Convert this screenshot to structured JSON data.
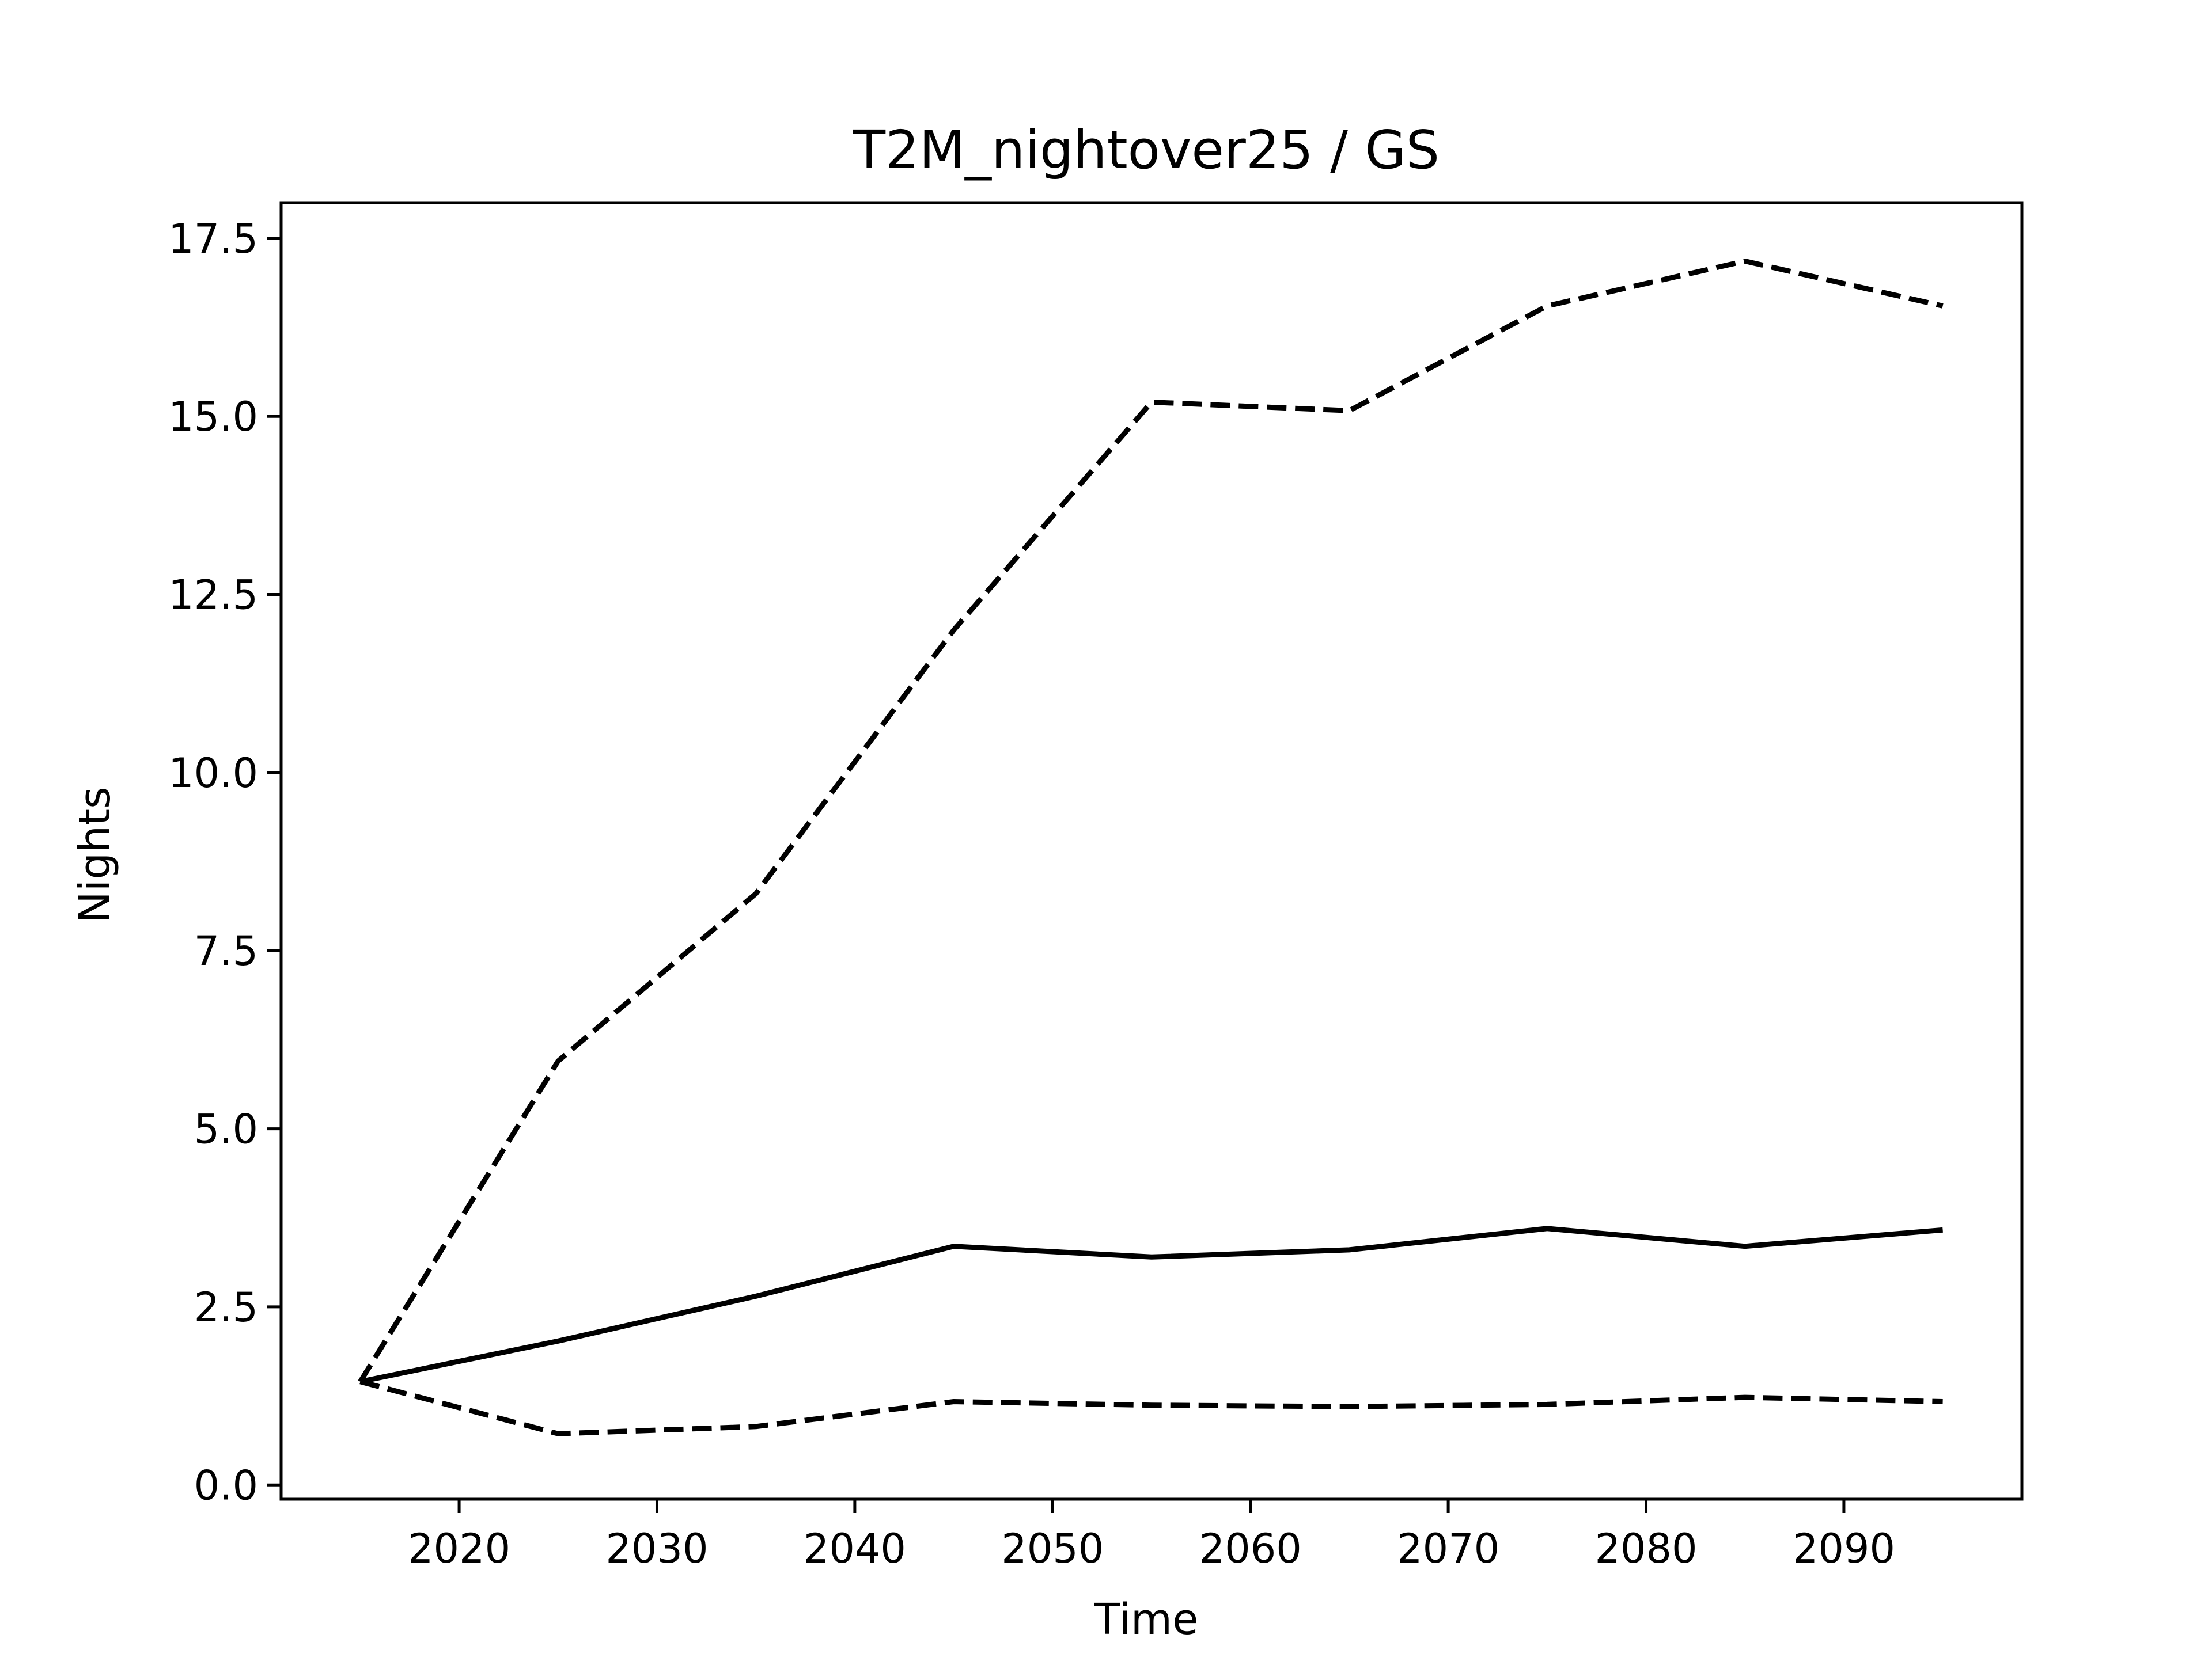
{
  "chart_data": {
    "type": "line",
    "title": "T2M_nightover25 / GS",
    "xlabel": "Time",
    "ylabel": "Nights",
    "xlim": [
      2011,
      2099
    ],
    "ylim": [
      -0.2,
      18.0
    ],
    "x_ticks": [
      2020,
      2030,
      2040,
      2050,
      2060,
      2070,
      2080,
      2090
    ],
    "x_tick_labels": [
      "2020",
      "2030",
      "2040",
      "2050",
      "2060",
      "2070",
      "2080",
      "2090"
    ],
    "y_ticks": [
      0.0,
      2.5,
      5.0,
      7.5,
      10.0,
      12.5,
      15.0,
      17.5
    ],
    "y_tick_labels": [
      "0.0",
      "2.5",
      "5.0",
      "7.5",
      "10.0",
      "12.5",
      "15.0",
      "17.5"
    ],
    "grid": false,
    "x": [
      2015,
      2025,
      2035,
      2045,
      2055,
      2065,
      2075,
      2085,
      2095
    ],
    "series": [
      {
        "style": "solid",
        "color": "#000000",
        "values": [
          1.45,
          2.02,
          2.65,
          3.35,
          3.2,
          3.3,
          3.6,
          3.35,
          3.58
        ]
      },
      {
        "style": "dashed",
        "color": "#000000",
        "values": [
          1.45,
          5.95,
          8.3,
          12.0,
          15.2,
          15.08,
          16.55,
          17.18,
          16.55
        ]
      },
      {
        "style": "dashed",
        "color": "#000000",
        "values": [
          1.45,
          0.72,
          0.82,
          1.17,
          1.12,
          1.1,
          1.13,
          1.23,
          1.17
        ]
      }
    ]
  }
}
